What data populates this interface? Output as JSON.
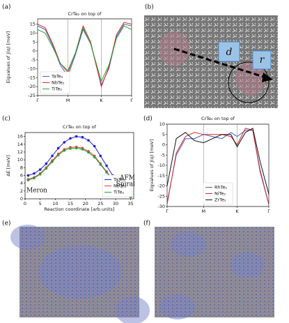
{
  "panel_labels": [
    "(a)",
    "(b)",
    "(c)",
    "(d)",
    "(e)",
    "(f)"
  ],
  "panel_b": {
    "labels": [
      "d",
      "r"
    ]
  },
  "chart_data": [
    {
      "type": "line",
      "title": "CrTe₂ on top of",
      "ylabel": "Eigvalues of J(q) [meV]",
      "x": [
        0,
        0.25,
        0.5,
        0.75,
        1,
        1.25,
        1.5,
        1.75,
        2.1,
        2.35,
        2.6,
        2.85,
        3.1
      ],
      "xlim": [
        0,
        3.1
      ],
      "xticks": [
        {
          "value": 0,
          "label": "Γ"
        },
        {
          "value": 1,
          "label": "M"
        },
        {
          "value": 2.1,
          "label": "K"
        },
        {
          "value": 3.1,
          "label": "Γ"
        }
      ],
      "ylim": [
        -25,
        18
      ],
      "yticks": [
        -25,
        -20,
        -15,
        -10,
        -5,
        0,
        5,
        10,
        15
      ],
      "xgrid": true,
      "legend": "lower left",
      "series": [
        {
          "name": "TaTe₂",
          "color": "#3a5fcd",
          "values": [
            14,
            12,
            3,
            -8,
            -14,
            -2,
            12,
            4,
            -19,
            -10,
            8,
            15,
            14
          ]
        },
        {
          "name": "NbTe₂",
          "color": "#d62728",
          "values": [
            15,
            13,
            4,
            -7,
            -12,
            -1,
            14,
            5,
            -20,
            -9,
            9,
            16,
            15
          ]
        },
        {
          "name": "TiTe₂",
          "color": "#2ca02c",
          "values": [
            12,
            10,
            2,
            -7,
            -11,
            -1,
            13,
            4,
            -17,
            -8,
            7,
            14,
            12
          ]
        }
      ]
    },
    {
      "type": "line",
      "title": "CrTe₂ on top of",
      "ylabel": "ΔE [meV]",
      "xlabel": "Reaction coordinate [arb.units]",
      "x": [
        1,
        3,
        5,
        7,
        9,
        11,
        13,
        15,
        17,
        19,
        21,
        23,
        25,
        27,
        29,
        31,
        33,
        35
      ],
      "xlim": [
        0,
        36
      ],
      "xticks": [
        0,
        5,
        10,
        15,
        20,
        25,
        30,
        35
      ],
      "ylim": [
        0,
        17
      ],
      "yticks": [
        0,
        2,
        4,
        6,
        8,
        10,
        12,
        14,
        16
      ],
      "markers": true,
      "legend": "lower right",
      "annotations": [
        "Meron",
        "AFM",
        "Spiral"
      ],
      "series": [
        {
          "name": "TaTe₂",
          "color": "#1f1fd6",
          "values": [
            6,
            6.5,
            7.5,
            9,
            11,
            13,
            14.5,
            15.5,
            16,
            15.8,
            15,
            13.5,
            11,
            8.5,
            6,
            3.5,
            1.5,
            0.5
          ]
        },
        {
          "name": "NbTe₂",
          "color": "#e0403a",
          "values": [
            5,
            5.5,
            6.5,
            8,
            9.8,
            11.5,
            12.7,
            13.2,
            13.3,
            13,
            12.2,
            11,
            9,
            7,
            5,
            3,
            1.3,
            0.5
          ]
        },
        {
          "name": "TiTe₂",
          "color": "#2e9e3a",
          "values": [
            4.8,
            5.3,
            6.3,
            7.8,
            9.5,
            11.2,
            12.4,
            12.9,
            13,
            12.7,
            11.9,
            10.7,
            8.8,
            6.8,
            4.8,
            2.9,
            1.2,
            0.5
          ]
        }
      ]
    },
    {
      "type": "line",
      "title": "CrTe₂ on top of",
      "ylabel": "Eigvalues of J(q) [meV]",
      "x": [
        0,
        0.25,
        0.5,
        0.75,
        1,
        1.25,
        1.5,
        1.75,
        1.92,
        2.15,
        2.35,
        2.55,
        2.79
      ],
      "xlim": [
        0,
        2.79
      ],
      "xticks": [
        {
          "value": 0,
          "label": "Γ"
        },
        {
          "value": 1,
          "label": "M"
        },
        {
          "value": 1.92,
          "label": "K"
        },
        {
          "value": 2.79,
          "label": "Γ"
        }
      ],
      "ylim": [
        -30,
        10
      ],
      "yticks": [
        -30,
        -25,
        -20,
        -15,
        -10,
        -5,
        0,
        5,
        10
      ],
      "xgrid": true,
      "legend": "lower center",
      "series": [
        {
          "name": "RhTe₂",
          "color": "#3a5fcd",
          "values": [
            -28,
            -5,
            3,
            3,
            5,
            4,
            3,
            6,
            4,
            7,
            7,
            -12,
            -29
          ]
        },
        {
          "name": "NiTe₂",
          "color": "#d62728",
          "values": [
            -29,
            -4,
            4,
            6,
            5,
            5,
            5,
            4,
            0,
            8,
            7,
            -13,
            -29
          ]
        },
        {
          "name": "ZrTe₂",
          "color": "#111111",
          "values": [
            -20,
            3,
            6,
            2,
            1,
            3,
            5,
            5,
            -1,
            6,
            8,
            -8,
            -24
          ]
        }
      ]
    }
  ]
}
